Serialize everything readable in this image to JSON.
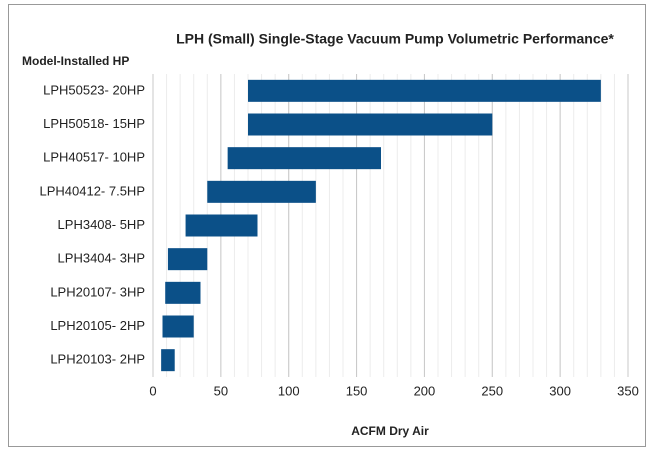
{
  "chart_data": {
    "type": "floating-bar",
    "title": "LPH (Small) Single-Stage Vacuum Pump Volumetric Performance*",
    "y_axis_label": "Model-Installed HP",
    "x_axis_label": "ACFM Dry Air",
    "categories": [
      "LPH50523- 20HP",
      "LPH50518- 15HP",
      "LPH40517- 10HP",
      "LPH40412- 7.5HP",
      "LPH3408- 5HP",
      "LPH3404- 3HP",
      "LPH20107- 3HP",
      "LPH20105- 2HP",
      "LPH20103- 2HP"
    ],
    "values": [
      [
        70,
        330
      ],
      [
        70,
        250
      ],
      [
        55,
        168
      ],
      [
        40,
        120
      ],
      [
        24,
        77
      ],
      [
        11,
        40
      ],
      [
        9,
        35
      ],
      [
        7,
        30
      ],
      [
        6,
        16
      ]
    ],
    "color": "#0b5088",
    "xlim": [
      0,
      350
    ],
    "xticks": [
      0,
      50,
      100,
      150,
      200,
      250,
      300,
      350
    ],
    "xminor": [
      0,
      10,
      20,
      30,
      40,
      50,
      60,
      70,
      80,
      90,
      100,
      110,
      120,
      130,
      140,
      150,
      160,
      170,
      180,
      190,
      200,
      210,
      220,
      230,
      240,
      250,
      260,
      270,
      280,
      290,
      300,
      310,
      320,
      330,
      340,
      350
    ],
    "grid": true
  }
}
